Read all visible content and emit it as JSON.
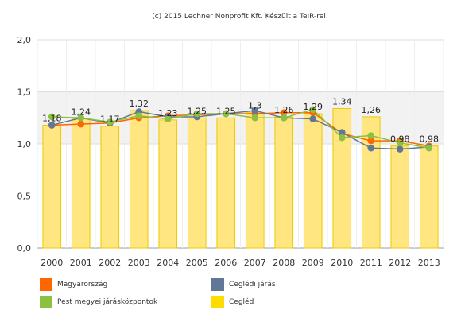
{
  "credit": "(c) 2015 Lechner Nonprofit Kft. Készült a TeIR-rel.",
  "chart_data": {
    "type": "bar",
    "categories": [
      "2000",
      "2001",
      "2002",
      "2003",
      "2004",
      "2005",
      "2006",
      "2007",
      "2008",
      "2009",
      "2010",
      "2011",
      "2012",
      "2013"
    ],
    "ylim": [
      0,
      2
    ],
    "yticks": [
      "0,0",
      "0,5",
      "1,0",
      "1,5",
      "2,0"
    ],
    "ytick_values": [
      0,
      0.5,
      1.0,
      1.5,
      2.0
    ],
    "highlight_band": [
      1.0,
      1.5
    ],
    "grid": true,
    "bar_series": {
      "name": "Cegléd",
      "color": "#ffe680",
      "values": [
        1.18,
        1.24,
        1.17,
        1.32,
        1.23,
        1.25,
        1.25,
        1.3,
        1.26,
        1.29,
        1.34,
        1.26,
        0.98,
        0.98
      ],
      "labels": [
        "1,18",
        "1,24",
        "1,17",
        "1,32",
        "1,23",
        "1,25",
        "1,25",
        "1,3",
        "1,26",
        "1,29",
        "1,34",
        "1,26",
        "0,98",
        "0,98"
      ]
    },
    "line_series": [
      {
        "name": "Magyarország",
        "color": "#ff6600",
        "values": [
          1.18,
          1.19,
          1.2,
          1.25,
          1.27,
          1.28,
          1.29,
          1.29,
          1.3,
          1.3,
          1.1,
          1.03,
          1.03,
          0.98
        ]
      },
      {
        "name": "Ceglédi járás",
        "color": "#607896",
        "values": [
          1.18,
          1.25,
          1.2,
          1.31,
          1.26,
          1.26,
          1.29,
          1.32,
          1.25,
          1.24,
          1.11,
          0.96,
          0.95,
          0.97
        ]
      },
      {
        "name": "Pest megyei járásközpontok",
        "color": "#8cc040",
        "values": [
          1.26,
          1.25,
          1.21,
          1.27,
          1.24,
          1.29,
          1.29,
          1.25,
          1.25,
          1.33,
          1.06,
          1.08,
          1.01,
          0.96
        ]
      }
    ]
  },
  "legend": [
    {
      "label": "Magyarország",
      "color": "#ff6600"
    },
    {
      "label": "Ceglédi járás",
      "color": "#607896"
    },
    {
      "label": "Pest megyei járásközpontok",
      "color": "#8cc040"
    },
    {
      "label": "Cegléd",
      "color": "#ffdc00"
    }
  ]
}
